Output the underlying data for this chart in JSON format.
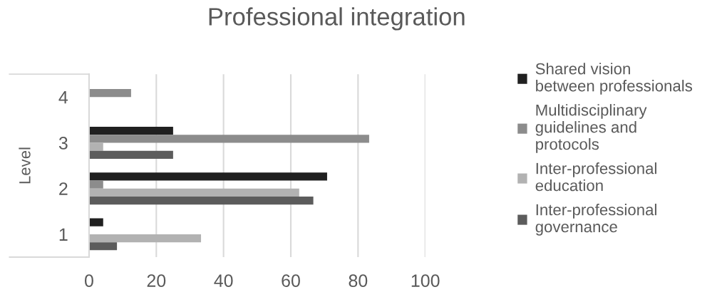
{
  "chart_data": {
    "type": "bar",
    "orientation": "horizontal",
    "title": "Professional integration",
    "ylabel": "Level",
    "categories": [
      "4",
      "3",
      "2",
      "1"
    ],
    "series": [
      {
        "name": "Shared vision\nbetween professionals",
        "color": "#202020",
        "values": [
          0,
          25,
          70.8,
          4.2
        ]
      },
      {
        "name": "Multidisciplinary\nguidelines and\nprotocols",
        "color": "#8c8c8c",
        "values": [
          12.5,
          83.3,
          4.2,
          0
        ]
      },
      {
        "name": "Inter-professional\neducation",
        "color": "#b2b2b2",
        "values": [
          0,
          4.2,
          62.5,
          33.3
        ]
      },
      {
        "name": "Inter-professional\ngovernance",
        "color": "#5c5c5c",
        "values": [
          0,
          25,
          66.7,
          8.3
        ]
      }
    ],
    "xlim": [
      0,
      100
    ],
    "xticks": [
      0,
      20,
      40,
      60,
      80,
      100
    ],
    "grid": "x",
    "legend": "right"
  }
}
